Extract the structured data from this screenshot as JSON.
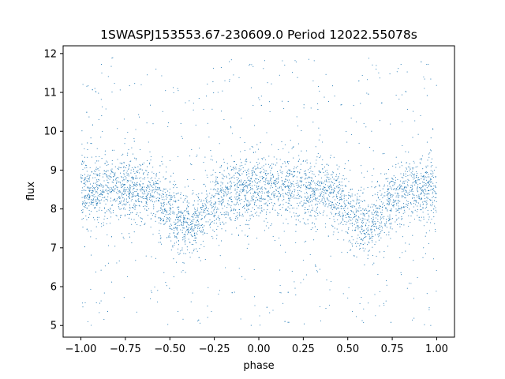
{
  "chart_data": {
    "type": "scatter",
    "title": "1SWASPJ153553.67-230609.0 Period 12022.55078s",
    "xlabel": "phase",
    "ylabel": "flux",
    "xlim": [
      -1.1,
      1.1
    ],
    "ylim": [
      4.7,
      12.2
    ],
    "x_ticks": [
      -1.0,
      -0.75,
      -0.5,
      -0.25,
      0.0,
      0.25,
      0.5,
      0.75,
      1.0
    ],
    "x_tick_labels": [
      "−1.00",
      "−0.75",
      "−0.50",
      "−0.25",
      "0.00",
      "0.25",
      "0.50",
      "0.75",
      "1.00"
    ],
    "y_ticks": [
      5,
      6,
      7,
      8,
      9,
      10,
      11,
      12
    ],
    "y_tick_labels": [
      "5",
      "6",
      "7",
      "8",
      "9",
      "10",
      "11",
      "12"
    ],
    "grid": false,
    "legend": "none",
    "point_color": "#1f77b4",
    "series": [
      {
        "x_range": [
          -1.0,
          1.0
        ],
        "y_range": [
          5.0,
          11.9
        ],
        "baseline_flux": 8.5,
        "core_band": [
          8.0,
          9.0
        ],
        "dips": [
          {
            "phase": -0.4,
            "min_flux": 7.6
          },
          {
            "phase": 0.6,
            "min_flux": 7.6
          }
        ]
      }
    ]
  }
}
